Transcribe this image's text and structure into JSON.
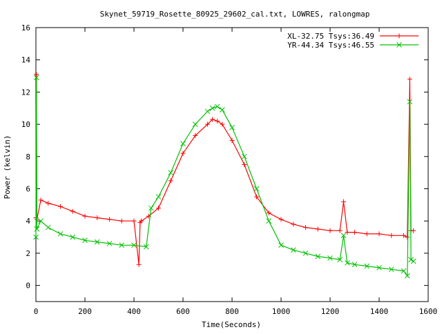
{
  "chart_data": {
    "type": "line",
    "title": "Skynet_59719_Rosette_80925_29602_cal.txt, LOWRES, ralongmap",
    "xlabel": "Time(Seconds)",
    "ylabel": "Power (kelvin)",
    "xlim": [
      0,
      1600
    ],
    "ylim": [
      -1,
      16
    ],
    "xticks": [
      0,
      200,
      400,
      600,
      800,
      1000,
      1200,
      1400,
      1600
    ],
    "yticks": [
      0,
      2,
      4,
      6,
      8,
      10,
      12,
      14,
      16
    ],
    "grid": false,
    "legend_position": "top-right",
    "series": [
      {
        "name": "XL-32.75 Tsys:36.49",
        "color": "#ff0000",
        "marker": "plus",
        "x": [
          0,
          2,
          4,
          20,
          50,
          100,
          150,
          200,
          250,
          300,
          350,
          400,
          420,
          425,
          430,
          460,
          500,
          550,
          600,
          650,
          700,
          720,
          740,
          760,
          800,
          850,
          900,
          950,
          1000,
          1050,
          1100,
          1150,
          1200,
          1240,
          1255,
          1270,
          1300,
          1350,
          1400,
          1450,
          1500,
          1515,
          1525,
          1530,
          1540
        ],
        "y": [
          4.2,
          13.1,
          4.1,
          5.3,
          5.1,
          4.9,
          4.6,
          4.3,
          4.2,
          4.1,
          4.0,
          4.0,
          1.3,
          3.9,
          4.0,
          4.3,
          4.8,
          6.5,
          8.2,
          9.3,
          10.0,
          10.3,
          10.2,
          10.0,
          9.0,
          7.5,
          5.5,
          4.5,
          4.1,
          3.8,
          3.6,
          3.5,
          3.4,
          3.4,
          5.2,
          3.3,
          3.3,
          3.2,
          3.2,
          3.1,
          3.1,
          3.0,
          12.8,
          3.4,
          3.4
        ]
      },
      {
        "name": "YR-44.34 Tsys:46.55",
        "color": "#00c000",
        "marker": "cross",
        "x": [
          0,
          2,
          4,
          20,
          50,
          100,
          150,
          200,
          250,
          300,
          350,
          400,
          450,
          470,
          500,
          550,
          600,
          650,
          700,
          720,
          740,
          760,
          800,
          850,
          900,
          950,
          1000,
          1050,
          1100,
          1150,
          1200,
          1240,
          1255,
          1270,
          1300,
          1350,
          1400,
          1450,
          1500,
          1515,
          1525,
          1530,
          1540
        ],
        "y": [
          3.0,
          12.9,
          3.5,
          4.0,
          3.6,
          3.2,
          3.0,
          2.8,
          2.7,
          2.6,
          2.5,
          2.5,
          2.4,
          4.8,
          5.5,
          7.0,
          8.8,
          10.0,
          10.8,
          11.0,
          11.1,
          10.9,
          9.8,
          8.0,
          6.0,
          4.0,
          2.5,
          2.2,
          2.0,
          1.8,
          1.7,
          1.6,
          3.1,
          1.4,
          1.3,
          1.2,
          1.1,
          1.0,
          0.9,
          0.6,
          11.4,
          1.6,
          1.5
        ]
      }
    ]
  }
}
